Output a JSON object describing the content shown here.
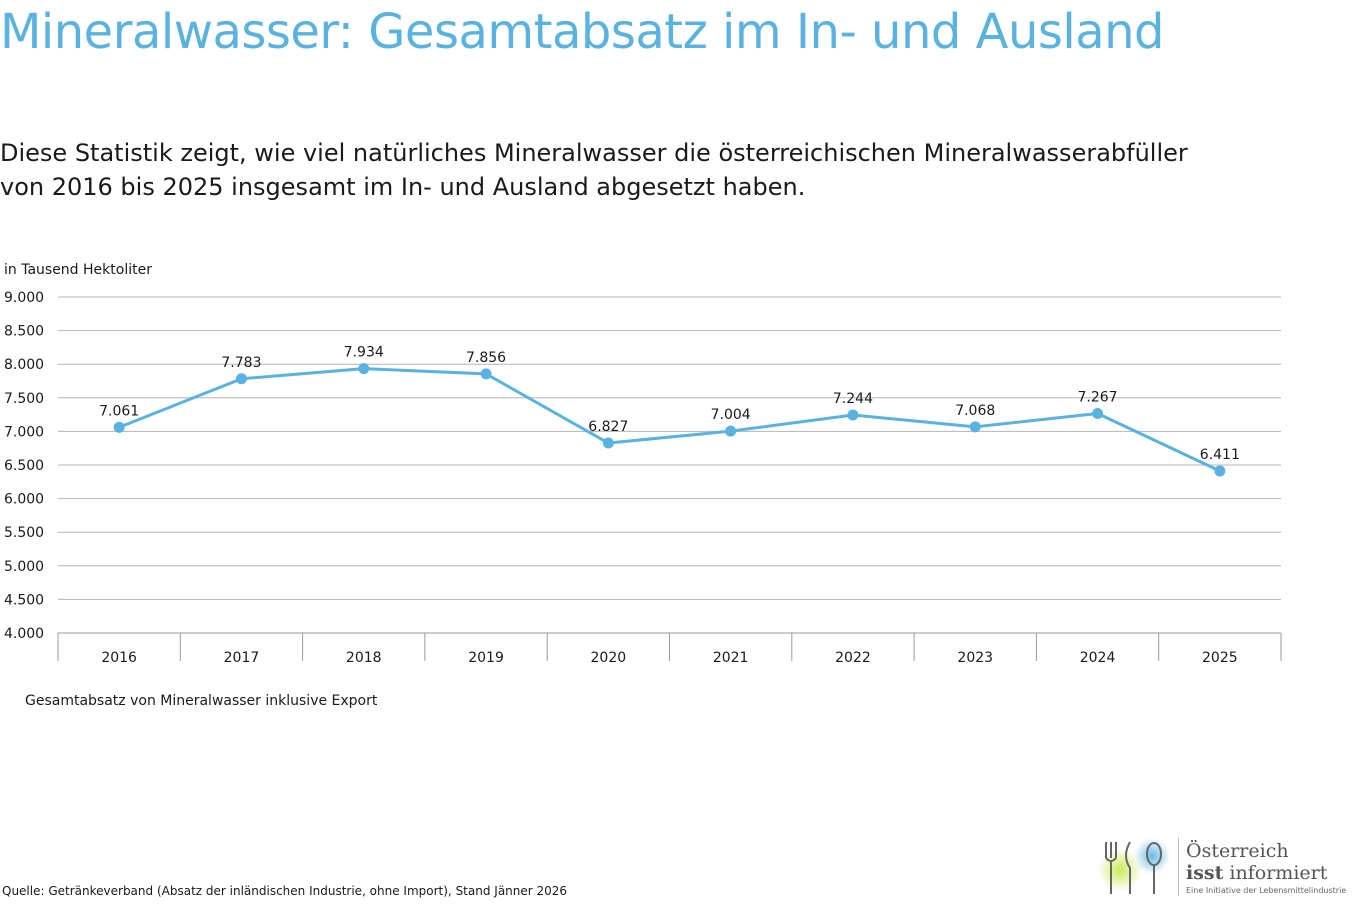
{
  "title": "Mineralwasser: Gesamtabsatz im In- und Ausland",
  "description": {
    "line1": "Diese Statistik zeigt, wie viel natürliches Mineralwasser die österreichischen Mineralwasserabfüller",
    "line2": "von 2016 bis 2025 insgesamt im In- und Ausland abgesetzt haben."
  },
  "caption": "Gesamtabsatz von Mineralwasser inklusive Export",
  "source": "Quelle: Getränkeverband (Absatz der inländischen Industrie, ohne Import),  Stand Jänner 2026",
  "logo": {
    "line1": "Österreich",
    "line2_bold": "isst",
    "line2_rest": " informiert",
    "line3": "Eine Initiative der Lebensmittelindustrie"
  },
  "colors": {
    "title": "#5ab2e0",
    "series": "#5ab2e0",
    "grid": "#b5b5b5"
  },
  "chart_data": {
    "type": "line",
    "ylabel": "in Tausend Hektoliter",
    "categories": [
      "2016",
      "2017",
      "2018",
      "2019",
      "2020",
      "2021",
      "2022",
      "2023",
      "2024",
      "2025"
    ],
    "values": [
      7061,
      7783,
      7934,
      7856,
      6827,
      7004,
      7244,
      7068,
      7267,
      6411
    ],
    "value_labels": [
      "7.061",
      "7.783",
      "7.934",
      "7.856",
      "6.827",
      "7.004",
      "7.244",
      "7.068",
      "7.267",
      "6.411"
    ],
    "ylim": [
      4000,
      9000
    ],
    "yticks": [
      4000,
      4500,
      5000,
      5500,
      6000,
      6500,
      7000,
      7500,
      8000,
      8500,
      9000
    ],
    "ytick_labels": [
      "4.000",
      "4.500",
      "5.000",
      "5.500",
      "6.000",
      "6.500",
      "7.000",
      "7.500",
      "8.000",
      "8.500",
      "9.000"
    ],
    "grid": true,
    "legend": "none"
  }
}
